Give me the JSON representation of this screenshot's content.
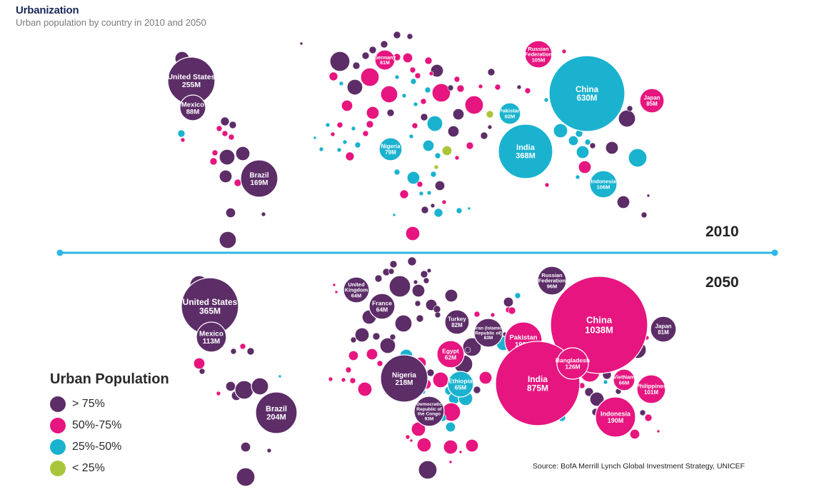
{
  "title": "Urbanization",
  "subtitle": "Urban population by country in 2010 and 2050",
  "year_top": "2010",
  "year_bottom": "2050",
  "source": "Source: BofA Merrill Lynch Global Investment Strategy, UNICEF",
  "colors": {
    "gt75": "#5c2d67",
    "p50_75": "#e6157f",
    "p25_50": "#1ab2cf",
    "lt25": "#a9c63a",
    "divider": "#2db8e6"
  },
  "legend": {
    "title": "Urban Population",
    "items": [
      {
        "label": "> 75%",
        "color": "#5c2d67"
      },
      {
        "label": "50%-75%",
        "color": "#e6157f"
      },
      {
        "label": "25%-50%",
        "color": "#1ab2cf"
      },
      {
        "label": "< 25%",
        "color": "#a9c63a"
      }
    ]
  },
  "chart_data": [
    {
      "type": "bubble",
      "year": "2010",
      "unit": "urban population",
      "countries": [
        {
          "name": "United States",
          "value": "255M",
          "urban": "gt75"
        },
        {
          "name": "Mexico",
          "value": "88M",
          "urban": "gt75"
        },
        {
          "name": "Brazil",
          "value": "169M",
          "urban": "gt75"
        },
        {
          "name": "Germany",
          "value": "61M",
          "urban": "gt75"
        },
        {
          "name": "Russian Federation",
          "value": "105M",
          "urban": "p50_75"
        },
        {
          "name": "China",
          "value": "630M",
          "urban": "p25_50"
        },
        {
          "name": "Japan",
          "value": "85M",
          "urban": "p50_75"
        },
        {
          "name": "Pakistan",
          "value": "62M",
          "urban": "p25_50"
        },
        {
          "name": "India",
          "value": "368M",
          "urban": "p25_50"
        },
        {
          "name": "Nigeria",
          "value": "79M",
          "urban": "p25_50"
        },
        {
          "name": "Indonesia",
          "value": "106M",
          "urban": "p25_50"
        }
      ]
    },
    {
      "type": "bubble",
      "year": "2050",
      "unit": "urban population",
      "countries": [
        {
          "name": "United States",
          "value": "365M",
          "urban": "gt75"
        },
        {
          "name": "Mexico",
          "value": "113M",
          "urban": "gt75"
        },
        {
          "name": "Brazil",
          "value": "204M",
          "urban": "gt75"
        },
        {
          "name": "United Kingdom",
          "value": "64M",
          "urban": "gt75"
        },
        {
          "name": "France",
          "value": "64M",
          "urban": "gt75"
        },
        {
          "name": "Turkey",
          "value": "82M",
          "urban": "gt75"
        },
        {
          "name": "Iran (Islamic Republic of)",
          "value": "83M",
          "urban": "gt75"
        },
        {
          "name": "Russian Federation",
          "value": "96M",
          "urban": "gt75"
        },
        {
          "name": "China",
          "value": "1038M",
          "urban": "p50_75"
        },
        {
          "name": "Japan",
          "value": "81M",
          "urban": "gt75"
        },
        {
          "name": "Pakistan",
          "value": "199M",
          "urban": "p50_75"
        },
        {
          "name": "India",
          "value": "875M",
          "urban": "p50_75"
        },
        {
          "name": "Bangladesh",
          "value": "126M",
          "urban": "p50_75"
        },
        {
          "name": "VietNam",
          "value": "66M",
          "urban": "p50_75"
        },
        {
          "name": "Philippines",
          "value": "101M",
          "urban": "p50_75"
        },
        {
          "name": "Egypt",
          "value": "62M",
          "urban": "p50_75"
        },
        {
          "name": "Ethiopia",
          "value": "65M",
          "urban": "p25_50"
        },
        {
          "name": "Nigeria",
          "value": "218M",
          "urban": "gt75"
        },
        {
          "name": "Democratic Republic of the Congo",
          "value": "93M",
          "urban": "p50_75"
        },
        {
          "name": "Indonesia",
          "value": "190M",
          "urban": "p50_75"
        }
      ]
    }
  ]
}
